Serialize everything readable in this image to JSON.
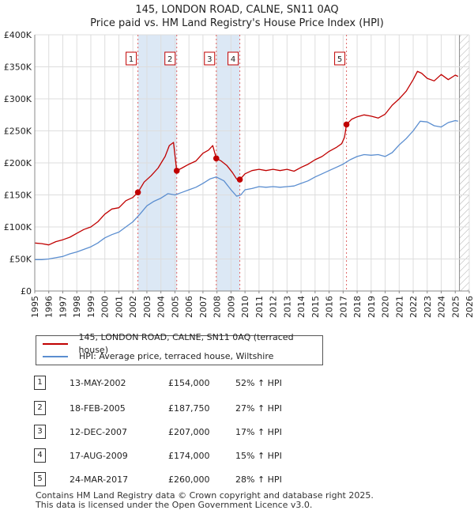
{
  "header": {
    "title_line1": "145, LONDON ROAD, CALNE, SN11 0AQ",
    "title_line2": "Price paid vs. HM Land Registry's House Price Index (HPI)"
  },
  "colors": {
    "property": "#c00000",
    "hpi": "#5b8ed0",
    "span_fill": "#dce8f5",
    "marker_line": "#e06666",
    "future_hatch": "#999999",
    "grid": "#dddddd"
  },
  "legend": {
    "property_label": "145, LONDON ROAD, CALNE, SN11 0AQ (terraced house)",
    "hpi_label": "HPI: Average price, terraced house, Wiltshire"
  },
  "transactions": [
    {
      "num": "1",
      "date": "13-MAY-2002",
      "price": "£154,000",
      "hpi": "52% ↑ HPI"
    },
    {
      "num": "2",
      "date": "18-FEB-2005",
      "price": "£187,750",
      "hpi": "27% ↑ HPI"
    },
    {
      "num": "3",
      "date": "12-DEC-2007",
      "price": "£207,000",
      "hpi": "17% ↑ HPI"
    },
    {
      "num": "4",
      "date": "17-AUG-2009",
      "price": "£174,000",
      "hpi": "15% ↑ HPI"
    },
    {
      "num": "5",
      "date": "24-MAR-2017",
      "price": "£260,000",
      "hpi": "28% ↑ HPI"
    }
  ],
  "footer": {
    "line1": "Contains HM Land Registry data © Crown copyright and database right 2025.",
    "line2": "This data is licensed under the Open Government Licence v3.0."
  },
  "chart_data": {
    "type": "line",
    "title": "145, LONDON ROAD, CALNE, SN11 0AQ",
    "subtitle": "Price paid vs. HM Land Registry's House Price Index (HPI)",
    "xlabel": "",
    "ylabel": "",
    "xlim": [
      1995,
      2026
    ],
    "ylim": [
      0,
      400000
    ],
    "y_ticks": [
      0,
      50000,
      100000,
      150000,
      200000,
      250000,
      300000,
      350000,
      400000
    ],
    "y_tick_labels": [
      "£0",
      "£50K",
      "£100K",
      "£150K",
      "£200K",
      "£250K",
      "£300K",
      "£350K",
      "£400K"
    ],
    "x_ticks": [
      1995,
      1996,
      1997,
      1998,
      1999,
      2000,
      2001,
      2002,
      2003,
      2004,
      2005,
      2006,
      2007,
      2008,
      2009,
      2010,
      2011,
      2012,
      2013,
      2014,
      2015,
      2016,
      2017,
      2018,
      2019,
      2020,
      2021,
      2022,
      2023,
      2024,
      2025,
      2026
    ],
    "x_tick_labels": [
      "1995",
      "1996",
      "1997",
      "1998",
      "1999",
      "2000",
      "2001",
      "2002",
      "2003",
      "2004",
      "2005",
      "2006",
      "2007",
      "2008",
      "2009",
      "2010",
      "2011",
      "2012",
      "2013",
      "2014",
      "2015",
      "2016",
      "2017",
      "2018",
      "2019",
      "2020",
      "2021",
      "2022",
      "2023",
      "2024",
      "2025",
      "2026"
    ],
    "grid": true,
    "legend_position": "bottom-left",
    "shaded_spans": [
      [
        2002.36,
        2005.13
      ],
      [
        2007.95,
        2009.63
      ]
    ],
    "future_after": 2025.3,
    "series": [
      {
        "name": "145, LONDON ROAD, CALNE, SN11 0AQ (terraced house)",
        "color": "#c00000",
        "x": [
          1995.0,
          1995.5,
          1996.0,
          1996.5,
          1997.0,
          1997.5,
          1998.0,
          1998.5,
          1999.0,
          1999.5,
          2000.0,
          2000.5,
          2001.0,
          2001.5,
          2002.0,
          2002.36,
          2002.8,
          2003.3,
          2003.8,
          2004.3,
          2004.6,
          2004.9,
          2005.13,
          2005.5,
          2006.0,
          2006.5,
          2007.0,
          2007.4,
          2007.7,
          2007.95,
          2008.3,
          2008.7,
          2009.1,
          2009.4,
          2009.63,
          2010.0,
          2010.5,
          2011.0,
          2011.5,
          2012.0,
          2012.5,
          2013.0,
          2013.5,
          2014.0,
          2014.5,
          2015.0,
          2015.5,
          2016.0,
          2016.5,
          2016.9,
          2017.1,
          2017.24,
          2017.6,
          2018.0,
          2018.5,
          2019.0,
          2019.5,
          2020.0,
          2020.5,
          2021.0,
          2021.5,
          2022.0,
          2022.3,
          2022.6,
          2023.0,
          2023.5,
          2024.0,
          2024.5,
          2025.0,
          2025.2
        ],
        "values": [
          75000,
          74000,
          72000,
          77000,
          80000,
          84000,
          90000,
          96000,
          100000,
          108000,
          120000,
          128000,
          130000,
          141000,
          146000,
          154000,
          170000,
          180000,
          192000,
          210000,
          227000,
          232000,
          187750,
          192000,
          198000,
          203000,
          215000,
          220000,
          227000,
          207000,
          203000,
          196000,
          185000,
          175000,
          174000,
          183000,
          188000,
          190000,
          188000,
          190000,
          188000,
          190000,
          187000,
          193000,
          198000,
          205000,
          210000,
          218000,
          224000,
          230000,
          240000,
          260000,
          268000,
          272000,
          275000,
          273000,
          270000,
          276000,
          290000,
          300000,
          312000,
          330000,
          343000,
          340000,
          332000,
          328000,
          338000,
          330000,
          337000,
          335000
        ]
      },
      {
        "name": "HPI: Average price, terraced house, Wiltshire",
        "color": "#5b8ed0",
        "x": [
          1995.0,
          1995.5,
          1996.0,
          1996.5,
          1997.0,
          1997.5,
          1998.0,
          1998.5,
          1999.0,
          1999.5,
          2000.0,
          2000.5,
          2001.0,
          2001.5,
          2002.0,
          2002.5,
          2003.0,
          2003.5,
          2004.0,
          2004.5,
          2005.0,
          2005.5,
          2006.0,
          2006.5,
          2007.0,
          2007.5,
          2007.95,
          2008.5,
          2009.0,
          2009.4,
          2009.7,
          2010.0,
          2010.5,
          2011.0,
          2011.5,
          2012.0,
          2012.5,
          2013.0,
          2013.5,
          2014.0,
          2014.5,
          2015.0,
          2015.5,
          2016.0,
          2016.5,
          2017.0,
          2017.5,
          2018.0,
          2018.5,
          2019.0,
          2019.5,
          2020.0,
          2020.5,
          2021.0,
          2021.5,
          2022.0,
          2022.5,
          2023.0,
          2023.5,
          2024.0,
          2024.5,
          2025.0,
          2025.2
        ],
        "values": [
          49000,
          49000,
          50000,
          52000,
          54000,
          58000,
          61000,
          65000,
          69000,
          75000,
          83000,
          88000,
          92000,
          100000,
          108000,
          120000,
          133000,
          140000,
          145000,
          152000,
          150000,
          154000,
          158000,
          162000,
          168000,
          175000,
          178000,
          172000,
          158000,
          148000,
          150000,
          158000,
          160000,
          163000,
          162000,
          163000,
          162000,
          163000,
          164000,
          168000,
          172000,
          178000,
          183000,
          188000,
          193000,
          198000,
          205000,
          210000,
          213000,
          212000,
          213000,
          210000,
          216000,
          228000,
          238000,
          250000,
          265000,
          264000,
          258000,
          256000,
          263000,
          266000,
          265000
        ]
      }
    ],
    "sale_points": [
      {
        "label": "1",
        "x": 2002.36,
        "y": 154000
      },
      {
        "label": "2",
        "x": 2005.13,
        "y": 187750
      },
      {
        "label": "3",
        "x": 2007.95,
        "y": 207000
      },
      {
        "label": "4",
        "x": 2009.63,
        "y": 174000
      },
      {
        "label": "5",
        "x": 2017.24,
        "y": 260000
      }
    ]
  }
}
